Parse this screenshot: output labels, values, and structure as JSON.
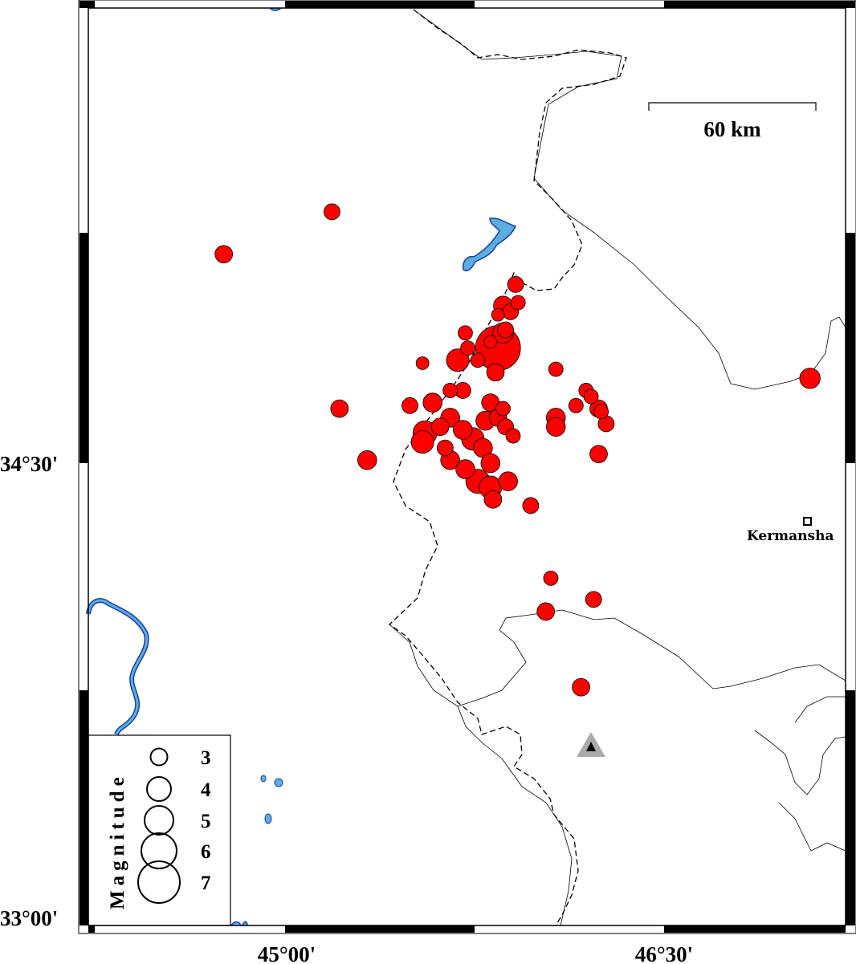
{
  "map": {
    "axes": {
      "x_ticks": [
        {
          "value": 45.0,
          "label": "45°00'"
        },
        {
          "value": 46.5,
          "label": "46°30'"
        }
      ],
      "y_ticks": [
        {
          "value": 34.5,
          "label": "34°30'"
        },
        {
          "value": 33.0,
          "label": "33°00'"
        }
      ]
    },
    "scale_bar": {
      "label": "60 km"
    },
    "city": {
      "label": "Kermansha"
    },
    "station_marker": {
      "lon": 46.21,
      "lat": 33.58,
      "color": "#aaaaaa"
    },
    "colors": {
      "event": "#ff0000",
      "water": "#5aaee0",
      "water_edge": "#1a3fa0"
    },
    "legend": {
      "title": "Magnitude",
      "items": [
        {
          "mag": 3,
          "label": "3"
        },
        {
          "mag": 4,
          "label": "4"
        },
        {
          "mag": 5,
          "label": "5"
        },
        {
          "mag": 6,
          "label": "6"
        },
        {
          "mag": 7,
          "label": "7"
        }
      ]
    }
  },
  "events": [
    [
      45.18,
      35.33,
      2.9
    ],
    [
      44.75,
      35.19,
      3.1
    ],
    [
      45.21,
      34.68,
      3.1
    ],
    [
      45.32,
      34.51,
      3.3
    ],
    [
      47.08,
      34.78,
      3.5
    ],
    [
      45.91,
      35.09,
      2.9
    ],
    [
      45.86,
      35.02,
      3.3
    ],
    [
      45.92,
      35.03,
      2.7
    ],
    [
      45.89,
      35.0,
      2.9
    ],
    [
      45.84,
      34.99,
      2.5
    ],
    [
      45.87,
      34.94,
      2.9
    ],
    [
      45.71,
      34.93,
      2.7
    ],
    [
      45.84,
      34.88,
      7.5
    ],
    [
      45.86,
      34.93,
      3.5
    ],
    [
      45.81,
      34.9,
      2.5
    ],
    [
      45.72,
      34.88,
      2.7
    ],
    [
      45.68,
      34.84,
      3.8
    ],
    [
      45.54,
      34.83,
      2.5
    ],
    [
      45.76,
      34.84,
      2.7
    ],
    [
      45.83,
      34.8,
      3.1
    ],
    [
      46.07,
      34.81,
      2.7
    ],
    [
      45.7,
      34.74,
      2.9
    ],
    [
      45.65,
      34.74,
      2.7
    ],
    [
      45.58,
      34.7,
      3.3
    ],
    [
      45.49,
      34.69,
      2.9
    ],
    [
      45.81,
      34.7,
      3.1
    ],
    [
      45.86,
      34.68,
      2.7
    ],
    [
      45.55,
      34.6,
      4.0
    ],
    [
      45.54,
      34.57,
      3.8
    ],
    [
      45.65,
      34.65,
      3.3
    ],
    [
      45.7,
      34.61,
      3.3
    ],
    [
      45.79,
      34.64,
      3.3
    ],
    [
      45.87,
      34.62,
      2.9
    ],
    [
      45.9,
      34.59,
      2.7
    ],
    [
      45.74,
      34.58,
      3.8
    ],
    [
      45.78,
      34.55,
      3.3
    ],
    [
      45.65,
      34.51,
      3.3
    ],
    [
      45.71,
      34.48,
      3.3
    ],
    [
      45.81,
      34.5,
      3.3
    ],
    [
      45.76,
      34.44,
      4.0
    ],
    [
      45.81,
      34.42,
      3.8
    ],
    [
      45.88,
      34.44,
      3.3
    ],
    [
      45.82,
      34.38,
      3.1
    ],
    [
      45.97,
      34.36,
      2.9
    ],
    [
      46.07,
      34.65,
      3.3
    ],
    [
      46.07,
      34.62,
      3.3
    ],
    [
      46.19,
      34.74,
      2.7
    ],
    [
      46.21,
      34.72,
      2.7
    ],
    [
      46.15,
      34.69,
      2.7
    ],
    [
      46.24,
      34.68,
      3.1
    ],
    [
      46.25,
      34.67,
      2.7
    ],
    [
      46.27,
      34.63,
      2.9
    ],
    [
      46.24,
      34.53,
      3.1
    ],
    [
      46.05,
      34.12,
      2.7
    ],
    [
      46.22,
      34.05,
      2.9
    ],
    [
      46.03,
      34.01,
      3.1
    ],
    [
      46.17,
      33.76,
      3.1
    ],
    [
      45.63,
      34.55,
      2.9
    ],
    [
      45.61,
      34.62,
      3.1
    ],
    [
      45.84,
      34.65,
      3.1
    ]
  ]
}
